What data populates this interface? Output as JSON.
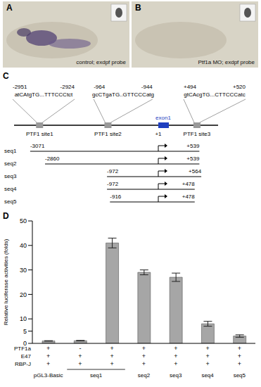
{
  "panels": {
    "A": {
      "letter": "A",
      "caption": "control; exdpf probe"
    },
    "B": {
      "letter": "B",
      "caption": "Ptf1a MO; exdpf probe"
    },
    "C": {
      "letter": "C",
      "sites": [
        {
          "label": "PTF1 site1",
          "start": "-2951",
          "end": "-2924",
          "sequence": "atCAtgTG...TTTCCCtct"
        },
        {
          "label": "PTF1 site2",
          "start": "-964",
          "end": "-944",
          "sequence": "gcCTgaTG..GTTCCCatg"
        },
        {
          "label": "PTF1 site3",
          "start": "+494",
          "end": "+520",
          "sequence": "gtCAcgTG...CTTCCCatc"
        }
      ],
      "exon": {
        "label": "exon1",
        "tss": "+1"
      },
      "constructs": [
        {
          "name": "seq1",
          "start": "-3071",
          "end": "+539"
        },
        {
          "name": "seq2",
          "start": "-2860",
          "end": "+539"
        },
        {
          "name": "seq3",
          "start": "-972",
          "end": "+564"
        },
        {
          "name": "seq4",
          "start": "-972",
          "end": "+478"
        },
        {
          "name": "seq5",
          "start": "-916",
          "end": "+478"
        }
      ]
    },
    "D": {
      "letter": "D"
    }
  },
  "chart_data": {
    "type": "bar",
    "y_label": "Relative luciferase activities (folds)",
    "categories": [
      null,
      null,
      null,
      null,
      null,
      null,
      null
    ],
    "values": [
      1,
      1.1,
      41,
      29,
      27,
      8,
      3
    ],
    "errors": [
      0.1,
      0.1,
      2,
      1,
      1.7,
      1,
      0.5
    ],
    "color": "#a6a6a6",
    "ylim": [
      0,
      50
    ],
    "yticks": [
      0,
      5,
      10,
      20,
      30,
      40,
      50
    ],
    "conditions": [
      {
        "name": "PTF1a",
        "values": [
          "+",
          "-",
          "+",
          "+",
          "+",
          "+",
          "+"
        ]
      },
      {
        "name": "E47",
        "values": [
          "+",
          "+",
          "+",
          "+",
          "+",
          "+",
          "+"
        ]
      },
      {
        "name": "RBP-J",
        "values": [
          "+",
          "+",
          "+",
          "+",
          "+",
          "+",
          "+"
        ]
      }
    ],
    "groups": [
      {
        "label": "pGL3-Basic",
        "span": 1
      },
      {
        "label": "seq1",
        "span": 2
      },
      {
        "label": "seq2",
        "span": 1
      },
      {
        "label": "seq3",
        "span": 1
      },
      {
        "label": "seq4",
        "span": 1
      },
      {
        "label": "seq5",
        "span": 1
      }
    ]
  }
}
